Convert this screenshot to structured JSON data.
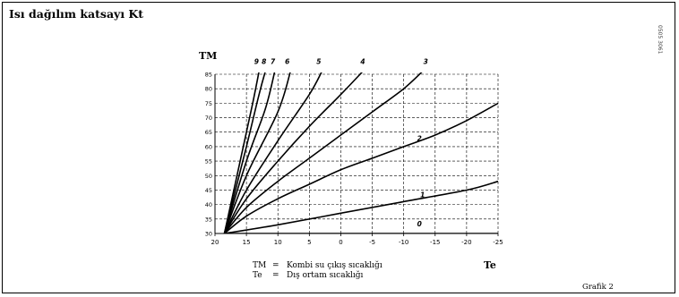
{
  "title": "Isı dağılım katsayı Kt",
  "side_code": "0505 3061",
  "footer_label": "Grafik 2",
  "legend": [
    {
      "key": "TM",
      "desc": "Kombi su çıkış sıcaklığı"
    },
    {
      "key": "Te",
      "desc": "Dış ortam sıcaklığı"
    }
  ],
  "chart_data": {
    "type": "line",
    "ylabel": "TM",
    "xlabel": "Te",
    "x_reversed": true,
    "xlim": [
      20,
      -25
    ],
    "ylim": [
      30,
      85
    ],
    "x_ticks": [
      "20",
      "15",
      "10",
      "5",
      "0",
      "-5",
      "-10",
      "-15",
      "-20",
      "-25"
    ],
    "y_ticks": [
      "30",
      "35",
      "40",
      "45",
      "50",
      "55",
      "60",
      "65",
      "70",
      "75",
      "80",
      "85"
    ],
    "grid": true,
    "series": [
      {
        "name": "0",
        "x": [
          18.5,
          10,
          0,
          -10,
          -20,
          -25
        ],
        "y": [
          30,
          30,
          30,
          30,
          30,
          30
        ]
      },
      {
        "name": "1",
        "x": [
          18.5,
          10,
          0,
          -10,
          -20,
          -25
        ],
        "y": [
          30,
          33,
          37,
          41,
          45,
          48
        ]
      },
      {
        "name": "2",
        "x": [
          18.5,
          15,
          10,
          5,
          0,
          -5,
          -10,
          -15,
          -20,
          -25
        ],
        "y": [
          30,
          36,
          42,
          47,
          52,
          56,
          60,
          64,
          69,
          75
        ]
      },
      {
        "name": "3",
        "x": [
          18.5,
          15,
          10,
          5,
          0,
          -5,
          -10,
          -13
        ],
        "y": [
          30,
          39,
          48,
          56,
          64,
          72,
          80,
          86
        ]
      },
      {
        "name": "4",
        "x": [
          18.5,
          15,
          10,
          5,
          0,
          -3.5
        ],
        "y": [
          30,
          42,
          55,
          67,
          78,
          86
        ]
      },
      {
        "name": "5",
        "x": [
          18.5,
          15,
          10,
          5,
          3
        ],
        "y": [
          30,
          45,
          62,
          78,
          86
        ]
      },
      {
        "name": "6",
        "x": [
          18.5,
          15,
          10,
          8
        ],
        "y": [
          30,
          50,
          72,
          86
        ]
      },
      {
        "name": "7",
        "x": [
          18.5,
          15,
          12,
          10.5
        ],
        "y": [
          30,
          55,
          73,
          86
        ]
      },
      {
        "name": "8",
        "x": [
          18.5,
          15,
          13,
          12
        ],
        "y": [
          30,
          60,
          78,
          86
        ]
      },
      {
        "name": "9",
        "x": [
          18.5,
          16,
          14,
          13
        ],
        "y": [
          30,
          55,
          75,
          86
        ]
      }
    ]
  }
}
